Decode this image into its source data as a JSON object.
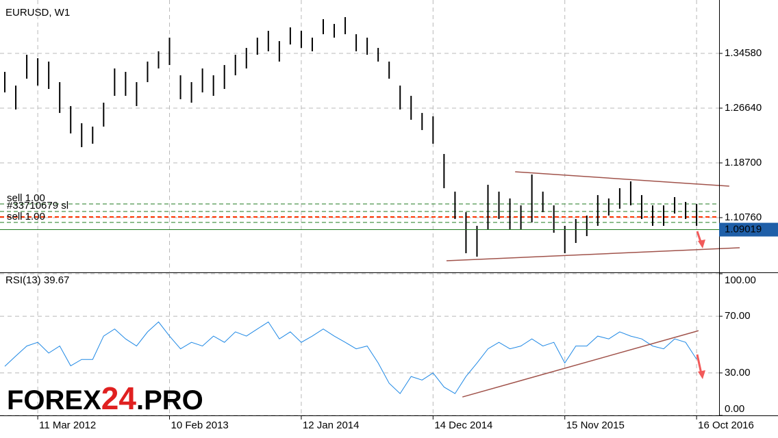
{
  "chart_data": [
    {
      "type": "hilo",
      "title": "EURUSD, W1",
      "color": "#000000",
      "x": [
        0,
        4,
        8,
        12,
        16,
        20,
        24,
        28,
        32,
        36,
        40,
        44,
        48,
        52,
        56,
        60,
        64,
        68,
        72,
        76,
        80,
        84,
        88,
        92,
        96,
        100,
        104,
        108,
        112,
        116,
        120,
        124,
        128,
        132,
        136,
        140,
        144,
        148,
        152,
        156,
        160,
        164,
        168,
        172,
        176,
        180,
        184,
        188,
        192,
        196,
        200,
        204,
        208,
        212,
        216,
        220,
        224,
        228,
        232,
        236,
        240,
        244,
        248,
        252
      ],
      "high": [
        1.319,
        1.2991,
        1.3438,
        1.3388,
        1.3339,
        1.3041,
        1.2694,
        1.2445,
        1.2396,
        1.2743,
        1.3239,
        1.319,
        1.3041,
        1.3339,
        1.3488,
        1.3686,
        1.314,
        1.3041,
        1.3239,
        1.314,
        1.3289,
        1.3438,
        1.3537,
        1.3686,
        1.3785,
        1.3636,
        1.3835,
        1.3785,
        1.3686,
        1.3954,
        1.3885,
        1.3984,
        1.3736,
        1.3686,
        1.3537,
        1.3339,
        1.2991,
        1.2842,
        1.2594,
        1.2545,
        1.1999,
        1.1453,
        1.1155,
        1.0957,
        1.1552,
        1.1453,
        1.1354,
        1.1254,
        1.1701,
        1.1453,
        1.1254,
        1.0957,
        1.1056,
        1.1106,
        1.1403,
        1.1354,
        1.1503,
        1.1602,
        1.1403,
        1.1254,
        1.1254,
        1.1374,
        1.1304,
        1.1274
      ],
      "low": [
        1.2892,
        1.2644,
        1.3091,
        1.2991,
        1.2942,
        1.2594,
        1.2297,
        1.2098,
        1.2148,
        1.2396,
        1.2842,
        1.2842,
        1.2694,
        1.3041,
        1.3239,
        1.3289,
        1.2793,
        1.2743,
        1.2892,
        1.2842,
        1.2942,
        1.314,
        1.3239,
        1.3438,
        1.3488,
        1.3339,
        1.3587,
        1.3537,
        1.3488,
        1.3736,
        1.3686,
        1.3736,
        1.3488,
        1.3438,
        1.3339,
        1.3091,
        1.2644,
        1.2495,
        1.2346,
        1.2148,
        1.1503,
        1.1056,
        1.056,
        1.051,
        1.0907,
        1.1056,
        1.0907,
        1.0907,
        1.1006,
        1.1155,
        1.0857,
        1.056,
        1.0709,
        1.0808,
        1.0957,
        1.1106,
        1.1205,
        1.1254,
        1.1056,
        1.0957,
        1.0957,
        1.1135,
        1.1056,
        1.0957
      ],
      "xlim": [
        -1.75,
        260.2
      ],
      "ylim": [
        1.0292,
        1.4232
      ],
      "yticks": [
        {
          "value": 1.3458,
          "label": "1.34580"
        },
        {
          "value": 1.2664,
          "label": "1.26640"
        },
        {
          "value": 1.187,
          "label": "1.18700"
        },
        {
          "value": 1.1076,
          "label": "1.10760"
        }
      ],
      "grid": true,
      "last_price": 1.09019,
      "last_price_color": "#1f5fa8",
      "levels": [
        {
          "value": 1.1274,
          "label": "sell 1.00",
          "color": "#1e7a1e"
        },
        {
          "value": 1.1165,
          "label": "#33710679 sl",
          "color": "#1e7a1e"
        },
        {
          "value": 1.1086,
          "color": "#ff3300"
        },
        {
          "value": 1.1006,
          "label": "sell 1.00",
          "color": "#1e7a1e"
        }
      ],
      "trendline_color": "#a0524a",
      "trendlines": [
        {
          "x": [
            185.9,
            263.9
          ],
          "y": [
            1.1741,
            1.1532
          ]
        },
        {
          "x": [
            160.9,
            267.7
          ],
          "y": [
            1.0451,
            1.0639
          ]
        }
      ]
    },
    {
      "type": "line",
      "title": "RSI(13) 39.67",
      "color": "#1e88e5",
      "values": [
        34.7,
        41.9,
        49,
        51.6,
        44,
        49,
        35,
        39.5,
        39.5,
        56,
        61,
        54,
        49,
        59,
        66,
        56,
        47,
        51.6,
        49,
        56,
        51.6,
        59,
        56,
        61,
        66,
        54,
        59,
        51.6,
        56,
        61,
        56,
        51.6,
        47,
        49,
        37,
        22.7,
        15.4,
        27.5,
        25,
        30,
        20,
        15.4,
        27.5,
        37,
        47,
        51.6,
        47,
        49,
        54,
        49,
        51.6,
        37,
        49,
        49,
        56,
        54,
        59,
        56,
        54,
        49,
        47,
        54,
        51.6,
        39.67
      ],
      "ylim": [
        0,
        100
      ],
      "yticks": [
        {
          "value": 100,
          "label": "100.00"
        },
        {
          "value": 70,
          "label": "70.00"
        },
        {
          "value": 30,
          "label": "30.00"
        },
        {
          "value": 0,
          "label": "0.00"
        }
      ],
      "xticks": [
        {
          "value": 12,
          "label": "11 Mar 2012"
        },
        {
          "value": 60,
          "label": "10 Feb 2013"
        },
        {
          "value": 108,
          "label": "12 Jan 2014"
        },
        {
          "value": 156,
          "label": "14 Dec 2014"
        },
        {
          "value": 204,
          "label": "15 Nov 2015"
        },
        {
          "value": 252,
          "label": "16 Oct 2016"
        }
      ],
      "grid": true,
      "trendline_color": "#a0524a",
      "trendlines": [
        {
          "x": [
            166.7,
            252.7
          ],
          "y": [
            13.0,
            59.8
          ]
        }
      ]
    }
  ],
  "logo": {
    "part1": "FOREX",
    "part2": "24",
    "part3": ".PRO"
  }
}
